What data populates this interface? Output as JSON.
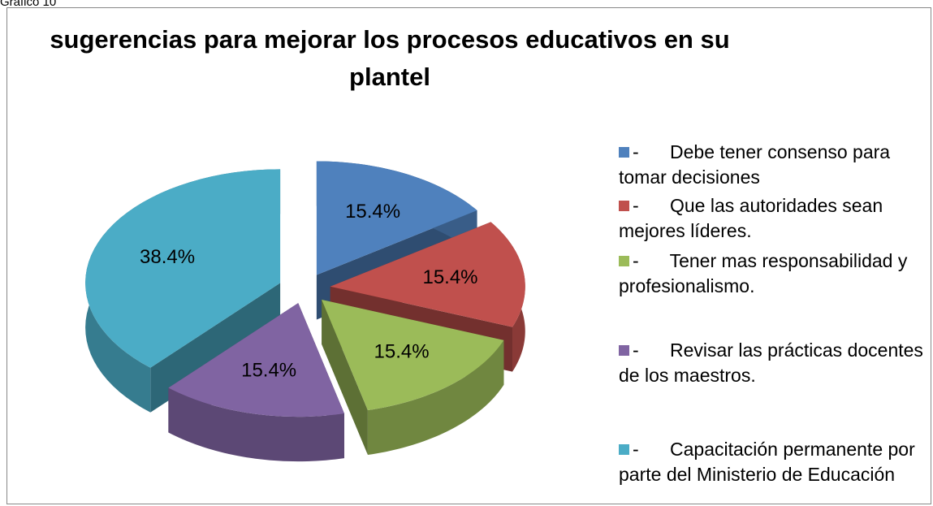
{
  "caption": "Gráfico 10",
  "chart_data": {
    "type": "pie",
    "title": "sugerencias para mejorar los procesos educativos en su plantel",
    "categories": [
      "-      Debe tener consenso para tomar decisiones",
      "-      Que las autoridades sean mejores líderes.",
      "-      Tener mas responsabilidad y profesionalismo.",
      "-      Revisar las prácticas docentes de los maestros.",
      "-      Capacitación permanente por parte del Ministerio de Educación"
    ],
    "values": [
      15.4,
      15.4,
      15.4,
      15.4,
      38.4
    ],
    "value_labels": [
      "15.4%",
      "15.4%",
      "15.4%",
      "15.4%",
      "38.4%"
    ],
    "colors": [
      "#4f81bd",
      "#c0504d",
      "#9bbb59",
      "#8064a2",
      "#4bacc6"
    ],
    "legend": "right"
  }
}
